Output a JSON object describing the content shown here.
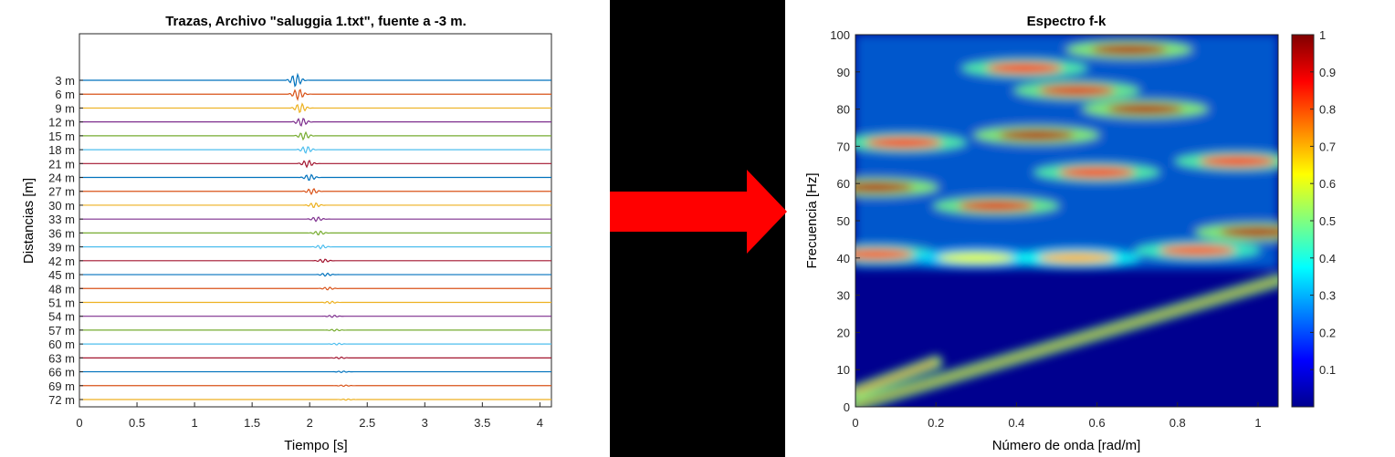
{
  "chart_data": [
    {
      "type": "line",
      "title": "Trazas, Archivo \"saluggia 1.txt\", fuente a -3 m.",
      "xlabel": "Tiempo [s]",
      "ylabel": "Distancias [m]",
      "xlim": [
        0,
        4.1
      ],
      "xticks": [
        "0",
        "0.5",
        "1",
        "1.5",
        "2",
        "2.5",
        "3",
        "3.5",
        "4"
      ],
      "xtick_values": [
        0,
        0.5,
        1,
        1.5,
        2,
        2.5,
        3,
        3.5,
        4
      ],
      "grid": false,
      "series": [
        {
          "name": "3 m",
          "distance_m": 3,
          "arrival_s": 1.84,
          "amplitude": 1.0,
          "color": "#0072BD"
        },
        {
          "name": "6 m",
          "distance_m": 6,
          "arrival_s": 1.86,
          "amplitude": 0.85,
          "color": "#D95319"
        },
        {
          "name": "9 m",
          "distance_m": 9,
          "arrival_s": 1.88,
          "amplitude": 0.75,
          "color": "#EDB120"
        },
        {
          "name": "12 m",
          "distance_m": 12,
          "arrival_s": 1.89,
          "amplitude": 0.65,
          "color": "#7E2F8E"
        },
        {
          "name": "15 m",
          "distance_m": 15,
          "arrival_s": 1.91,
          "amplitude": 0.6,
          "color": "#77AC30"
        },
        {
          "name": "18 m",
          "distance_m": 18,
          "arrival_s": 1.93,
          "amplitude": 0.55,
          "color": "#4DBEEE"
        },
        {
          "name": "21 m",
          "distance_m": 21,
          "arrival_s": 1.94,
          "amplitude": 0.55,
          "color": "#A2142F"
        },
        {
          "name": "24 m",
          "distance_m": 24,
          "arrival_s": 1.96,
          "amplitude": 0.5,
          "color": "#0072BD"
        },
        {
          "name": "27 m",
          "distance_m": 27,
          "arrival_s": 1.98,
          "amplitude": 0.45,
          "color": "#D95319"
        },
        {
          "name": "30 m",
          "distance_m": 30,
          "arrival_s": 2.0,
          "amplitude": 0.4,
          "color": "#EDB120"
        },
        {
          "name": "33 m",
          "distance_m": 33,
          "arrival_s": 2.02,
          "amplitude": 0.35,
          "color": "#7E2F8E"
        },
        {
          "name": "36 m",
          "distance_m": 36,
          "arrival_s": 2.04,
          "amplitude": 0.33,
          "color": "#77AC30"
        },
        {
          "name": "39 m",
          "distance_m": 39,
          "arrival_s": 2.06,
          "amplitude": 0.3,
          "color": "#4DBEEE"
        },
        {
          "name": "42 m",
          "distance_m": 42,
          "arrival_s": 2.08,
          "amplitude": 0.28,
          "color": "#A2142F"
        },
        {
          "name": "45 m",
          "distance_m": 45,
          "arrival_s": 2.1,
          "amplitude": 0.25,
          "color": "#0072BD"
        },
        {
          "name": "48 m",
          "distance_m": 48,
          "arrival_s": 2.12,
          "amplitude": 0.23,
          "color": "#D95319"
        },
        {
          "name": "51 m",
          "distance_m": 51,
          "arrival_s": 2.14,
          "amplitude": 0.2,
          "color": "#EDB120"
        },
        {
          "name": "54 m",
          "distance_m": 54,
          "arrival_s": 2.16,
          "amplitude": 0.18,
          "color": "#7E2F8E"
        },
        {
          "name": "57 m",
          "distance_m": 57,
          "arrival_s": 2.18,
          "amplitude": 0.16,
          "color": "#77AC30"
        },
        {
          "name": "60 m",
          "distance_m": 60,
          "arrival_s": 2.2,
          "amplitude": 0.15,
          "color": "#4DBEEE"
        },
        {
          "name": "63 m",
          "distance_m": 63,
          "arrival_s": 2.22,
          "amplitude": 0.14,
          "color": "#A2142F"
        },
        {
          "name": "66 m",
          "distance_m": 66,
          "arrival_s": 2.24,
          "amplitude": 0.12,
          "color": "#0072BD"
        },
        {
          "name": "69 m",
          "distance_m": 69,
          "arrival_s": 2.26,
          "amplitude": 0.11,
          "color": "#D95319"
        },
        {
          "name": "72 m",
          "distance_m": 72,
          "arrival_s": 2.28,
          "amplitude": 0.1,
          "color": "#EDB120"
        }
      ]
    },
    {
      "type": "heatmap",
      "title": "Espectro f-k",
      "xlabel": "Número de onda [rad/m]",
      "ylabel": "Frecuencia [Hz]",
      "xlim": [
        0,
        1.05
      ],
      "ylim": [
        0,
        100
      ],
      "xticks": [
        "0",
        "0.2",
        "0.4",
        "0.6",
        "0.8",
        "1"
      ],
      "xtick_values": [
        0,
        0.2,
        0.4,
        0.6,
        0.8,
        1
      ],
      "yticks": [
        "0",
        "10",
        "20",
        "30",
        "40",
        "50",
        "60",
        "70",
        "80",
        "90",
        "100"
      ],
      "ytick_values": [
        0,
        10,
        20,
        30,
        40,
        50,
        60,
        70,
        80,
        90,
        100
      ],
      "colormap": "jet",
      "colorbar": {
        "range": [
          0,
          1
        ],
        "ticks": [
          "0.1",
          "0.2",
          "0.3",
          "0.4",
          "0.5",
          "0.6",
          "0.7",
          "0.8",
          "0.9",
          "1"
        ],
        "tick_values": [
          0.1,
          0.2,
          0.3,
          0.4,
          0.5,
          0.6,
          0.7,
          0.8,
          0.9,
          1.0
        ]
      },
      "ridges": [
        {
          "k": [
            0,
            1.05
          ],
          "f": [
            0.5,
            34
          ],
          "value": 0.95
        },
        {
          "k": [
            0,
            0.2
          ],
          "f": [
            4,
            12
          ],
          "value": 0.9
        }
      ],
      "blobs": [
        {
          "k": 0.05,
          "f": 59,
          "value": 0.95
        },
        {
          "k": 0.35,
          "f": 54,
          "value": 0.9
        },
        {
          "k": 0.12,
          "f": 71,
          "value": 0.85
        },
        {
          "k": 0.45,
          "f": 73,
          "value": 0.95
        },
        {
          "k": 0.55,
          "f": 85,
          "value": 0.9
        },
        {
          "k": 0.72,
          "f": 80,
          "value": 0.95
        },
        {
          "k": 0.68,
          "f": 96,
          "value": 0.95
        },
        {
          "k": 0.42,
          "f": 91,
          "value": 0.85
        },
        {
          "k": 0.6,
          "f": 63,
          "value": 0.85
        },
        {
          "k": 0.95,
          "f": 66,
          "value": 0.85
        },
        {
          "k": 1.0,
          "f": 47,
          "value": 0.95
        },
        {
          "k": 0.85,
          "f": 42,
          "value": 0.8
        },
        {
          "k": 0.05,
          "f": 41,
          "value": 0.8
        },
        {
          "k": 0.3,
          "f": 40,
          "value": 0.6
        },
        {
          "k": 0.55,
          "f": 40,
          "value": 0.7
        }
      ]
    }
  ],
  "arrow": {
    "color": "#FF0000"
  },
  "divider": {
    "color": "#000000"
  }
}
